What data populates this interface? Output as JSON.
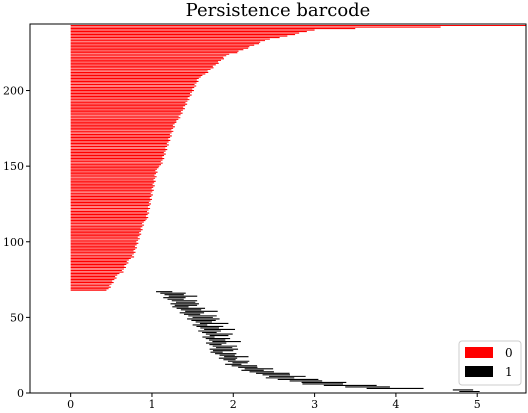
{
  "chart_data": {
    "type": "barcode",
    "title": "Persistence barcode",
    "xlim": [
      -0.5,
      5.6
    ],
    "ylim": [
      0,
      244
    ],
    "x_ticks": [
      0,
      1,
      2,
      3,
      4,
      5
    ],
    "y_ticks": [
      0,
      50,
      100,
      150,
      200
    ],
    "grid": false,
    "legend": {
      "placement": "bottom-right",
      "entries": [
        {
          "label": "0",
          "color": "#ff0000"
        },
        {
          "label": "1",
          "color": "#000000"
        }
      ]
    },
    "series": [
      {
        "name": "0",
        "color": "#ff0000",
        "bars": [
          {
            "y_from": 243,
            "y_to": 243,
            "birth": 0,
            "death_from": 5.6,
            "death_to": 5.6
          },
          {
            "y_from": 242,
            "y_to": 242,
            "birth": 0,
            "death_from": 4.55,
            "death_to": 4.55
          },
          {
            "y_from": 241,
            "y_to": 241,
            "birth": 0,
            "death_from": 3.5,
            "death_to": 3.5
          },
          {
            "y_from": 240,
            "y_to": 235,
            "birth": 0,
            "death_from": 3.0,
            "death_to": 2.6
          },
          {
            "y_from": 234,
            "y_to": 225,
            "birth": 0,
            "death_from": 2.45,
            "death_to": 2.05
          },
          {
            "y_from": 224,
            "y_to": 210,
            "birth": 0,
            "death_from": 1.95,
            "death_to": 1.65
          },
          {
            "y_from": 209,
            "y_to": 180,
            "birth": 0,
            "death_from": 1.6,
            "death_to": 1.33
          },
          {
            "y_from": 179,
            "y_to": 150,
            "birth": 0,
            "death_from": 1.3,
            "death_to": 1.12
          },
          {
            "y_from": 149,
            "y_to": 115,
            "birth": 0,
            "death_from": 1.08,
            "death_to": 0.95
          },
          {
            "y_from": 114,
            "y_to": 90,
            "birth": 0,
            "death_from": 0.92,
            "death_to": 0.78
          },
          {
            "y_from": 89,
            "y_to": 80,
            "birth": 0,
            "death_from": 0.74,
            "death_to": 0.65
          },
          {
            "y_from": 79,
            "y_to": 68,
            "birth": 0,
            "death_from": 0.6,
            "death_to": 0.47
          }
        ]
      },
      {
        "name": "1",
        "color": "#000000",
        "bars": [
          {
            "y_from": 67,
            "y_to": 58,
            "birth_from": 1.05,
            "birth_to": 1.25,
            "length_from": 0.2,
            "length_to": 0.35
          },
          {
            "y_from": 57,
            "y_to": 46,
            "birth_from": 1.25,
            "birth_to": 1.5,
            "length_from": 0.2,
            "length_to": 0.4
          },
          {
            "y_from": 45,
            "y_to": 38,
            "birth_from": 1.5,
            "birth_to": 1.62,
            "length_from": 0.18,
            "length_to": 0.38
          },
          {
            "y_from": 37,
            "y_to": 28,
            "birth_from": 1.62,
            "birth_to": 1.72,
            "length_from": 0.15,
            "length_to": 0.35
          },
          {
            "y_from": 27,
            "y_to": 20,
            "birth_from": 1.72,
            "birth_to": 1.9,
            "length_from": 0.15,
            "length_to": 0.3
          },
          {
            "y_from": 19,
            "y_to": 15,
            "birth_from": 1.9,
            "birth_to": 2.1,
            "length_from": 0.2,
            "length_to": 0.35
          },
          {
            "y_from": 14,
            "y_to": 11,
            "birth_from": 2.2,
            "birth_to": 2.35,
            "length_from": 0.3,
            "length_to": 0.45
          },
          {
            "y_from": 10,
            "y_to": 7,
            "birth_from": 2.4,
            "birth_to": 2.75,
            "length_from": 0.35,
            "length_to": 0.55
          },
          {
            "y_from": 6,
            "y_to": 3,
            "birth_from": 2.85,
            "birth_to": 3.55,
            "length_from": 0.5,
            "length_to": 0.7
          },
          {
            "y_from": 2,
            "y_to": 0,
            "birth_from": 4.7,
            "birth_to": 4.8,
            "length_from": 0.25,
            "length_to": 0.25
          }
        ]
      }
    ]
  }
}
